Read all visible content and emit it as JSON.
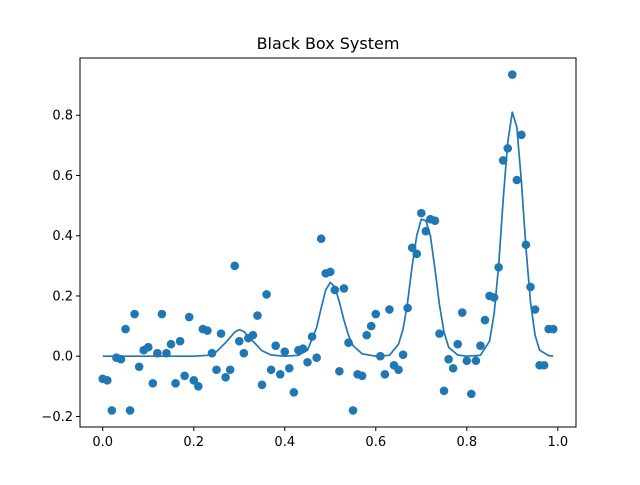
{
  "chart_data": {
    "type": "scatter",
    "title": "Black Box System",
    "xlabel": "",
    "ylabel": "",
    "xlim": [
      -0.05,
      1.04
    ],
    "ylim": [
      -0.235,
      0.99
    ],
    "xticks": [
      0.0,
      0.2,
      0.4,
      0.6,
      0.8,
      1.0
    ],
    "xtick_labels": [
      "0.0",
      "0.2",
      "0.4",
      "0.6",
      "0.8",
      "1.0"
    ],
    "yticks": [
      -0.2,
      0.0,
      0.2,
      0.4,
      0.6,
      0.8
    ],
    "ytick_labels": [
      "−0.2",
      "0.0",
      "0.2",
      "0.4",
      "0.6",
      "0.8"
    ],
    "grid": false,
    "color": "#1f77b4",
    "series": [
      {
        "kind": "scatter",
        "points": [
          [
            0.0,
            -0.075
          ],
          [
            0.01,
            -0.08
          ],
          [
            0.02,
            -0.18
          ],
          [
            0.03,
            -0.005
          ],
          [
            0.04,
            -0.01
          ],
          [
            0.05,
            0.09
          ],
          [
            0.06,
            -0.18
          ],
          [
            0.07,
            0.14
          ],
          [
            0.08,
            -0.035
          ],
          [
            0.09,
            0.02
          ],
          [
            0.1,
            0.03
          ],
          [
            0.11,
            -0.09
          ],
          [
            0.12,
            0.01
          ],
          [
            0.13,
            0.14
          ],
          [
            0.14,
            0.01
          ],
          [
            0.15,
            0.04
          ],
          [
            0.16,
            -0.09
          ],
          [
            0.17,
            0.05
          ],
          [
            0.18,
            -0.065
          ],
          [
            0.19,
            0.13
          ],
          [
            0.2,
            -0.08
          ],
          [
            0.21,
            -0.1
          ],
          [
            0.22,
            0.09
          ],
          [
            0.23,
            0.085
          ],
          [
            0.24,
            0.01
          ],
          [
            0.25,
            -0.045
          ],
          [
            0.26,
            0.075
          ],
          [
            0.27,
            -0.07
          ],
          [
            0.28,
            -0.045
          ],
          [
            0.29,
            0.3
          ],
          [
            0.3,
            0.05
          ],
          [
            0.31,
            0.01
          ],
          [
            0.32,
            0.06
          ],
          [
            0.33,
            0.07
          ],
          [
            0.34,
            0.135
          ],
          [
            0.35,
            -0.095
          ],
          [
            0.36,
            0.205
          ],
          [
            0.37,
            -0.045
          ],
          [
            0.38,
            0.035
          ],
          [
            0.39,
            -0.06
          ],
          [
            0.4,
            0.015
          ],
          [
            0.41,
            -0.04
          ],
          [
            0.42,
            -0.12
          ],
          [
            0.43,
            0.02
          ],
          [
            0.44,
            0.025
          ],
          [
            0.45,
            -0.02
          ],
          [
            0.46,
            0.065
          ],
          [
            0.47,
            -0.005
          ],
          [
            0.48,
            0.39
          ],
          [
            0.49,
            0.275
          ],
          [
            0.5,
            0.28
          ],
          [
            0.51,
            0.22
          ],
          [
            0.52,
            -0.05
          ],
          [
            0.53,
            0.225
          ],
          [
            0.54,
            0.045
          ],
          [
            0.55,
            -0.18
          ],
          [
            0.56,
            -0.06
          ],
          [
            0.57,
            -0.065
          ],
          [
            0.58,
            0.07
          ],
          [
            0.59,
            0.1
          ],
          [
            0.6,
            0.14
          ],
          [
            0.61,
            0.0
          ],
          [
            0.62,
            -0.06
          ],
          [
            0.63,
            0.155
          ],
          [
            0.64,
            -0.03
          ],
          [
            0.65,
            -0.045
          ],
          [
            0.66,
            0.005
          ],
          [
            0.67,
            0.16
          ],
          [
            0.68,
            0.36
          ],
          [
            0.69,
            0.34
          ],
          [
            0.7,
            0.475
          ],
          [
            0.71,
            0.415
          ],
          [
            0.72,
            0.455
          ],
          [
            0.73,
            0.45
          ],
          [
            0.74,
            0.075
          ],
          [
            0.75,
            -0.115
          ],
          [
            0.76,
            -0.01
          ],
          [
            0.77,
            -0.04
          ],
          [
            0.78,
            0.04
          ],
          [
            0.79,
            0.145
          ],
          [
            0.8,
            -0.015
          ],
          [
            0.81,
            -0.125
          ],
          [
            0.82,
            -0.015
          ],
          [
            0.83,
            0.035
          ],
          [
            0.84,
            0.12
          ],
          [
            0.85,
            0.2
          ],
          [
            0.86,
            0.195
          ],
          [
            0.87,
            0.295
          ],
          [
            0.88,
            0.65
          ],
          [
            0.89,
            0.69
          ],
          [
            0.9,
            0.935
          ],
          [
            0.91,
            0.585
          ],
          [
            0.92,
            0.735
          ],
          [
            0.93,
            0.37
          ],
          [
            0.94,
            0.23
          ],
          [
            0.95,
            0.155
          ],
          [
            0.96,
            -0.03
          ],
          [
            0.97,
            -0.03
          ],
          [
            0.98,
            0.09
          ],
          [
            0.99,
            0.09
          ]
        ]
      },
      {
        "kind": "line",
        "points": [
          [
            0.0,
            0.0
          ],
          [
            0.2,
            0.0
          ],
          [
            0.23,
            0.003
          ],
          [
            0.25,
            0.015
          ],
          [
            0.27,
            0.045
          ],
          [
            0.29,
            0.08
          ],
          [
            0.3,
            0.088
          ],
          [
            0.31,
            0.082
          ],
          [
            0.33,
            0.05
          ],
          [
            0.35,
            0.018
          ],
          [
            0.37,
            0.004
          ],
          [
            0.4,
            0.0
          ],
          [
            0.43,
            0.003
          ],
          [
            0.45,
            0.02
          ],
          [
            0.47,
            0.095
          ],
          [
            0.48,
            0.16
          ],
          [
            0.49,
            0.22
          ],
          [
            0.5,
            0.245
          ],
          [
            0.51,
            0.23
          ],
          [
            0.52,
            0.18
          ],
          [
            0.53,
            0.12
          ],
          [
            0.54,
            0.07
          ],
          [
            0.55,
            0.035
          ],
          [
            0.57,
            0.008
          ],
          [
            0.6,
            0.0
          ],
          [
            0.63,
            0.003
          ],
          [
            0.65,
            0.04
          ],
          [
            0.66,
            0.09
          ],
          [
            0.67,
            0.18
          ],
          [
            0.68,
            0.3
          ],
          [
            0.69,
            0.4
          ],
          [
            0.7,
            0.455
          ],
          [
            0.71,
            0.45
          ],
          [
            0.72,
            0.4
          ],
          [
            0.73,
            0.29
          ],
          [
            0.74,
            0.17
          ],
          [
            0.75,
            0.08
          ],
          [
            0.76,
            0.03
          ],
          [
            0.78,
            0.004
          ],
          [
            0.8,
            0.0
          ],
          [
            0.83,
            0.003
          ],
          [
            0.85,
            0.05
          ],
          [
            0.86,
            0.14
          ],
          [
            0.87,
            0.3
          ],
          [
            0.88,
            0.52
          ],
          [
            0.89,
            0.71
          ],
          [
            0.9,
            0.81
          ],
          [
            0.91,
            0.76
          ],
          [
            0.92,
            0.58
          ],
          [
            0.93,
            0.36
          ],
          [
            0.94,
            0.18
          ],
          [
            0.95,
            0.07
          ],
          [
            0.96,
            0.02
          ],
          [
            0.98,
            0.002
          ],
          [
            0.99,
            0.0
          ]
        ]
      }
    ]
  }
}
